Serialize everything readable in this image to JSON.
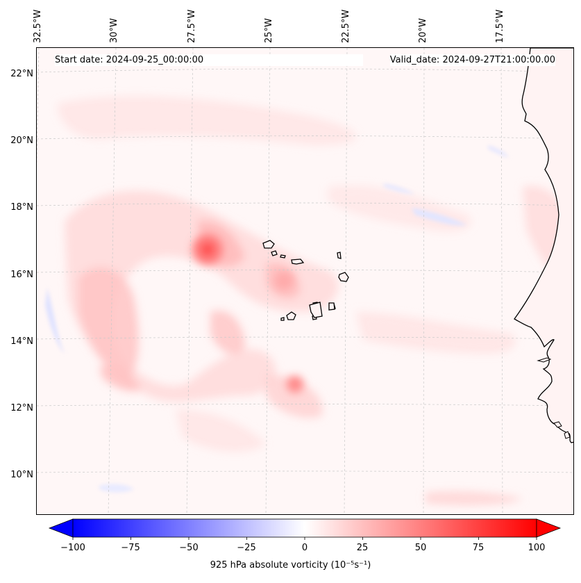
{
  "map": {
    "type": "filled-contour map",
    "start_date": "Start date: 2024-09-25_00:00:00",
    "valid_date": "Valid_date: 2024-09-27T21:00:00.00",
    "lon_labels": [
      "32.5°W",
      "30°W",
      "27.5°W",
      "25°W",
      "22.5°W",
      "20°W",
      "17.5°W"
    ],
    "lat_labels": [
      "22°N",
      "20°N",
      "18°N",
      "16°N",
      "14°N",
      "12°N",
      "10°N"
    ],
    "colors": {
      "ocean_background": "#fff7f7",
      "coast": "#000000"
    }
  },
  "colorbar": {
    "label": "925 hPa absolute vorticity (10⁻⁵s⁻¹)",
    "ticks": [
      "−100",
      "−75",
      "−50",
      "−25",
      "0",
      "25",
      "50",
      "75",
      "100"
    ],
    "min": -100,
    "max": 100,
    "colors": {
      "low": "#0000ff",
      "mid": "#ffffff",
      "high": "#ff0000"
    }
  }
}
